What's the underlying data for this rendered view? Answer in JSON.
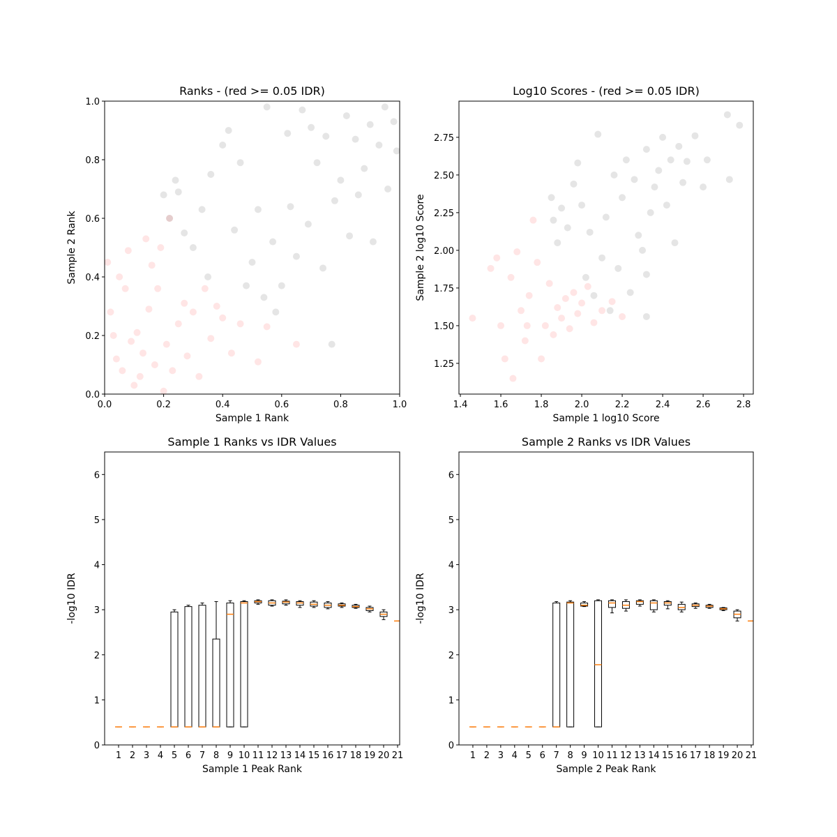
{
  "chart_data": [
    {
      "type": "scatter",
      "title": "Ranks - (red >= 0.05 IDR)",
      "xlabel": "Sample 1 Rank",
      "ylabel": "Sample 2 Rank",
      "xlim": [
        0,
        1
      ],
      "ylim": [
        0,
        1
      ],
      "xticks": [
        {
          "value": 0,
          "label": "0.0"
        },
        0.2,
        0.4,
        0.6,
        0.8,
        {
          "value": 1,
          "label": "1.0"
        }
      ],
      "yticks": [
        {
          "value": 0,
          "label": "0.0"
        },
        0.2,
        0.4,
        0.6,
        0.8,
        {
          "value": 1,
          "label": "1.0"
        }
      ],
      "opacity": 0.1,
      "series": [
        {
          "color": "#ff0000",
          "x": [
            0.01,
            0.02,
            0.03,
            0.04,
            0.05,
            0.06,
            0.07,
            0.08,
            0.09,
            0.1,
            0.11,
            0.12,
            0.13,
            0.14,
            0.15,
            0.16,
            0.17,
            0.18,
            0.19,
            0.2,
            0.21,
            0.22,
            0.23,
            0.25,
            0.27,
            0.28,
            0.3,
            0.32,
            0.34,
            0.36,
            0.38,
            0.4,
            0.43,
            0.46,
            0.52,
            0.55,
            0.65
          ],
          "y": [
            0.45,
            0.28,
            0.2,
            0.12,
            0.4,
            0.08,
            0.36,
            0.49,
            0.18,
            0.03,
            0.21,
            0.06,
            0.14,
            0.53,
            0.29,
            0.44,
            0.1,
            0.36,
            0.5,
            0.01,
            0.17,
            0.6,
            0.08,
            0.24,
            0.31,
            0.13,
            0.28,
            0.06,
            0.36,
            0.19,
            0.3,
            0.26,
            0.14,
            0.24,
            0.11,
            0.23,
            0.17
          ]
        },
        {
          "color": "#000000",
          "x": [
            0.2,
            0.22,
            0.24,
            0.25,
            0.27,
            0.3,
            0.33,
            0.36,
            0.4,
            0.42,
            0.44,
            0.46,
            0.48,
            0.5,
            0.52,
            0.54,
            0.55,
            0.57,
            0.6,
            0.62,
            0.63,
            0.65,
            0.67,
            0.69,
            0.7,
            0.72,
            0.74,
            0.75,
            0.77,
            0.78,
            0.8,
            0.82,
            0.83,
            0.85,
            0.86,
            0.88,
            0.9,
            0.91,
            0.93,
            0.95,
            0.96,
            0.98,
            0.99,
            0.58,
            0.35
          ],
          "y": [
            0.68,
            0.6,
            0.73,
            0.69,
            0.55,
            0.5,
            0.63,
            0.75,
            0.85,
            0.9,
            0.56,
            0.79,
            0.37,
            0.45,
            0.63,
            0.33,
            0.98,
            0.52,
            0.37,
            0.89,
            0.64,
            0.47,
            0.97,
            0.58,
            0.91,
            0.79,
            0.43,
            0.88,
            0.17,
            0.66,
            0.73,
            0.95,
            0.54,
            0.87,
            0.68,
            0.77,
            0.92,
            0.52,
            0.85,
            0.98,
            0.7,
            0.93,
            0.83,
            0.28,
            0.4
          ]
        }
      ]
    },
    {
      "type": "scatter",
      "title": "Log10 Scores - (red >= 0.05 IDR)",
      "xlabel": "Sample 1 log10 Score",
      "ylabel": "Sample 2 log10 Score",
      "xlim": [
        1.393,
        2.848
      ],
      "ylim": [
        1.046,
        2.99
      ],
      "xticks": [
        1.4,
        1.6,
        1.8,
        {
          "value": 2,
          "label": "2.0"
        },
        2.2,
        2.4,
        2.6,
        2.8
      ],
      "yticks": [
        1.25,
        {
          "value": 1.5,
          "label": "1.50"
        },
        1.75,
        {
          "value": 2,
          "label": "2.00"
        },
        2.25,
        {
          "value": 2.5,
          "label": "2.50"
        },
        2.75
      ],
      "opacity": 0.1,
      "series": [
        {
          "color": "#ff0000",
          "x": [
            1.46,
            1.55,
            1.58,
            1.6,
            1.62,
            1.65,
            1.66,
            1.68,
            1.7,
            1.72,
            1.74,
            1.76,
            1.78,
            1.8,
            1.82,
            1.84,
            1.86,
            1.88,
            1.9,
            1.92,
            1.94,
            1.96,
            1.98,
            2.0,
            2.03,
            2.06,
            2.1,
            2.15,
            2.2,
            1.73
          ],
          "y": [
            1.55,
            1.88,
            1.95,
            1.5,
            1.28,
            1.82,
            1.15,
            1.99,
            1.6,
            1.4,
            1.7,
            2.2,
            1.92,
            1.28,
            1.5,
            1.78,
            1.44,
            1.62,
            1.55,
            1.68,
            1.48,
            1.72,
            1.58,
            1.65,
            1.76,
            1.52,
            1.6,
            1.66,
            1.56,
            1.5
          ]
        },
        {
          "color": "#000000",
          "x": [
            1.85,
            1.86,
            1.88,
            1.9,
            1.93,
            1.96,
            1.98,
            2.0,
            2.02,
            2.04,
            2.06,
            2.08,
            2.1,
            2.12,
            2.14,
            2.16,
            2.18,
            2.2,
            2.22,
            2.24,
            2.26,
            2.28,
            2.3,
            2.32,
            2.34,
            2.36,
            2.38,
            2.4,
            2.42,
            2.44,
            2.46,
            2.48,
            2.5,
            2.52,
            2.56,
            2.6,
            2.62,
            2.72,
            2.73,
            2.78,
            2.32,
            2.32
          ],
          "y": [
            2.35,
            2.2,
            2.05,
            2.28,
            2.15,
            2.44,
            2.58,
            2.3,
            1.82,
            2.12,
            1.7,
            2.77,
            1.95,
            2.22,
            1.6,
            2.5,
            1.88,
            2.35,
            2.6,
            1.72,
            2.47,
            2.1,
            2.0,
            2.67,
            2.25,
            2.42,
            2.53,
            2.75,
            2.3,
            2.6,
            2.05,
            2.69,
            2.45,
            2.59,
            2.76,
            2.42,
            2.6,
            2.9,
            2.47,
            2.83,
            1.84,
            1.56
          ]
        }
      ]
    },
    {
      "type": "box",
      "title": "Sample 1 Ranks vs IDR Values",
      "xlabel": "Sample 1 Peak Rank",
      "ylabel": "-log10 IDR",
      "xlim": [
        0,
        21.15
      ],
      "ylim": [
        0,
        6.5
      ],
      "yticks": [
        0,
        1,
        2,
        3,
        4,
        5,
        6
      ],
      "x": [
        1,
        2,
        3,
        4,
        5,
        6,
        7,
        8,
        9,
        10,
        11,
        12,
        13,
        14,
        15,
        16,
        17,
        18,
        19,
        20,
        21
      ],
      "xticks": [
        1,
        2,
        3,
        4,
        5,
        6,
        7,
        8,
        9,
        10,
        11,
        12,
        13,
        14,
        15,
        16,
        17,
        18,
        19,
        20,
        21
      ],
      "color": "#000000",
      "median_color": "#ff7f0e",
      "low": [
        0.4,
        0.4,
        0.4,
        0.4,
        0.4,
        0.4,
        0.4,
        0.4,
        0.4,
        0.4,
        3.12,
        3.08,
        3.1,
        3.05,
        3.05,
        3.02,
        3.05,
        3.03,
        2.95,
        2.78,
        2.75
      ],
      "q1": [
        0.4,
        0.4,
        0.4,
        0.4,
        0.4,
        0.4,
        0.4,
        0.4,
        0.4,
        0.4,
        3.15,
        3.1,
        3.13,
        3.1,
        3.08,
        3.05,
        3.08,
        3.05,
        2.98,
        2.85,
        2.75
      ],
      "median": [
        0.4,
        0.4,
        0.4,
        0.4,
        0.4,
        0.4,
        0.4,
        0.4,
        2.9,
        3.15,
        3.18,
        3.15,
        3.17,
        3.15,
        3.12,
        3.1,
        3.1,
        3.07,
        3.02,
        2.9,
        2.75
      ],
      "q3": [
        0.4,
        0.4,
        0.4,
        0.4,
        2.95,
        3.07,
        3.1,
        2.35,
        3.15,
        3.18,
        3.2,
        3.2,
        3.19,
        3.18,
        3.17,
        3.15,
        3.13,
        3.1,
        3.05,
        2.95,
        2.75
      ],
      "high": [
        0.4,
        0.4,
        0.4,
        0.4,
        3.0,
        3.1,
        3.15,
        3.18,
        3.2,
        3.2,
        3.22,
        3.22,
        3.22,
        3.2,
        3.2,
        3.18,
        3.15,
        3.12,
        3.08,
        3.0,
        2.75
      ]
    },
    {
      "type": "box",
      "title": "Sample 2 Ranks vs IDR Values",
      "xlabel": "Sample 2 Peak Rank",
      "ylabel": "-log10 IDR",
      "xlim": [
        0,
        21.15
      ],
      "ylim": [
        0,
        6.5
      ],
      "yticks": [
        0,
        1,
        2,
        3,
        4,
        5,
        6
      ],
      "x": [
        1,
        2,
        3,
        4,
        5,
        6,
        7,
        8,
        9,
        10,
        11,
        12,
        13,
        14,
        15,
        16,
        17,
        18,
        19,
        20,
        21
      ],
      "xticks": [
        1,
        2,
        3,
        4,
        5,
        6,
        7,
        8,
        9,
        10,
        11,
        12,
        13,
        14,
        15,
        16,
        17,
        18,
        19,
        20,
        21
      ],
      "color": "#000000",
      "median_color": "#ff7f0e",
      "low": [
        0.4,
        0.4,
        0.4,
        0.4,
        0.4,
        0.4,
        0.4,
        0.4,
        3.07,
        0.4,
        2.93,
        2.97,
        3.08,
        2.95,
        3.02,
        2.95,
        3.03,
        3.03,
        2.98,
        2.75,
        2.75
      ],
      "q1": [
        0.4,
        0.4,
        0.4,
        0.4,
        0.4,
        0.4,
        0.4,
        0.4,
        3.08,
        0.4,
        3.05,
        3.03,
        3.12,
        3.0,
        3.1,
        3.0,
        3.07,
        3.05,
        3.0,
        2.82,
        2.75
      ],
      "median": [
        0.4,
        0.4,
        0.4,
        0.4,
        0.4,
        0.4,
        0.4,
        3.15,
        3.1,
        1.78,
        3.15,
        3.1,
        3.18,
        3.15,
        3.15,
        3.05,
        3.1,
        3.08,
        3.02,
        2.9,
        2.75
      ],
      "q3": [
        0.4,
        0.4,
        0.4,
        0.4,
        0.4,
        0.4,
        3.15,
        3.17,
        3.15,
        3.2,
        3.2,
        3.18,
        3.2,
        3.2,
        3.18,
        3.12,
        3.13,
        3.1,
        3.04,
        2.97,
        2.75
      ],
      "high": [
        0.4,
        0.4,
        0.4,
        0.4,
        0.4,
        0.4,
        3.18,
        3.2,
        3.18,
        3.22,
        3.22,
        3.22,
        3.22,
        3.22,
        3.2,
        3.17,
        3.15,
        3.12,
        3.05,
        3.0,
        2.75
      ]
    }
  ]
}
